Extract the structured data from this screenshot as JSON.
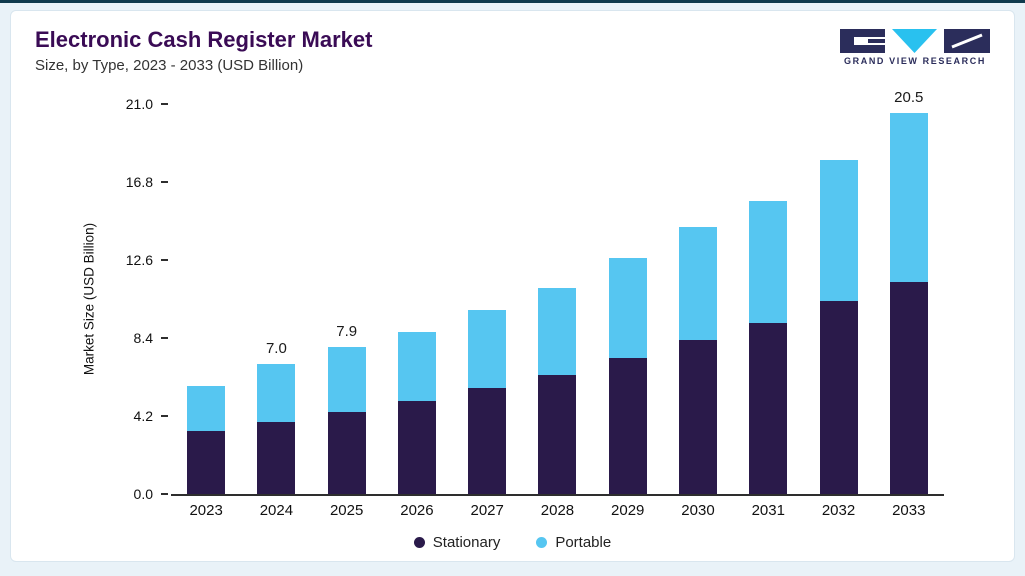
{
  "header": {
    "title": "Electronic Cash Register Market",
    "subtitle": "Size, by Type, 2023 - 2033 (USD Billion)",
    "logo_text": "GRAND VIEW RESEARCH"
  },
  "colors": {
    "page_bg": "#e9f2f8",
    "accent_line": "#0f3a4d",
    "card_border": "#d9e6ef",
    "title": "#3a0b55",
    "logo_navy": "#2b2d5b",
    "logo_cyan": "#29c1ef",
    "stationary": "#2a1a4a",
    "portable": "#56c6f1"
  },
  "chart_data": {
    "type": "bar",
    "stacked": true,
    "title": "Electronic Cash Register Market",
    "subtitle": "Size, by Type, 2023 - 2033 (USD Billion)",
    "xlabel": "",
    "ylabel": "Market Size (USD Billion)",
    "ylim": [
      0,
      21.0
    ],
    "yticks": [
      0.0,
      4.2,
      8.4,
      12.6,
      16.8,
      21.0
    ],
    "grid": false,
    "legend_position": "bottom",
    "categories": [
      "2023",
      "2024",
      "2025",
      "2026",
      "2027",
      "2028",
      "2029",
      "2030",
      "2031",
      "2032",
      "2033"
    ],
    "series": [
      {
        "name": "Stationary",
        "color": "#2a1a4a",
        "values": [
          3.4,
          3.9,
          4.4,
          5.0,
          5.7,
          6.4,
          7.3,
          8.3,
          9.2,
          10.4,
          11.4
        ]
      },
      {
        "name": "Portable",
        "color": "#56c6f1",
        "values": [
          2.4,
          3.1,
          3.5,
          3.7,
          4.2,
          4.7,
          5.4,
          6.1,
          6.6,
          7.6,
          9.1
        ]
      }
    ],
    "totals": [
      5.8,
      7.0,
      7.9,
      8.7,
      9.9,
      11.1,
      12.7,
      14.4,
      15.8,
      18.0,
      20.5
    ],
    "bar_labels": [
      "",
      "7.0",
      "7.9",
      "",
      "",
      "",
      "",
      "",
      "",
      "",
      "20.5"
    ]
  }
}
